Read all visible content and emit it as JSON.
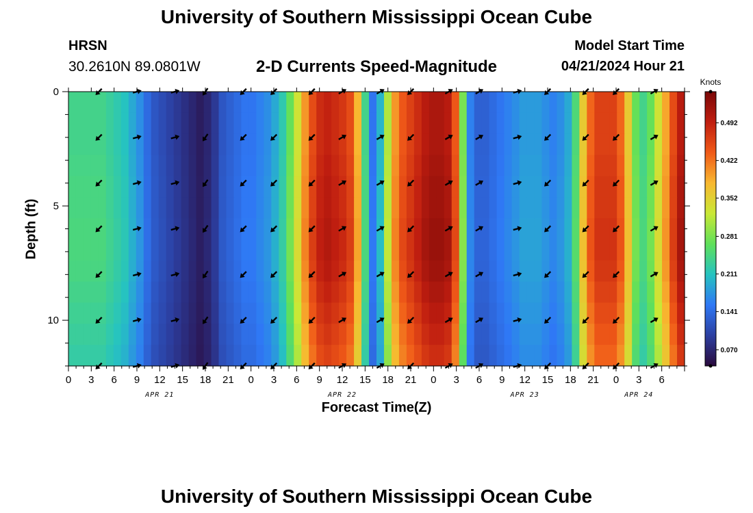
{
  "header": {
    "title": "University of Southern Mississippi Ocean Cube",
    "station": "HRSN",
    "coords": "30.2610N  89.0801W",
    "subtitle": "2-D Currents Speed-Magnitude",
    "model_start_label": "Model Start Time",
    "model_start_value": "04/21/2024 Hour 21",
    "footer_title": "University of Southern Mississippi Ocean Cube"
  },
  "colors": {
    "colormap": [
      "#2a0a3c",
      "#2c3fa0",
      "#2f78f5",
      "#26c3c0",
      "#5fe05a",
      "#c9e836",
      "#f8b830",
      "#f05a18",
      "#c01e10",
      "#7a0808"
    ]
  },
  "chart_data": {
    "type": "heatmap",
    "xlabel": "Forecast Time(Z)",
    "ylabel": "Depth (ft)",
    "x_range_hours": [
      0,
      81
    ],
    "y_range_ft": [
      0,
      12
    ],
    "x_tick_labels": [
      "0",
      "3",
      "6",
      "9",
      "12",
      "15",
      "18",
      "21",
      "0",
      "3",
      "6",
      "9",
      "12",
      "15",
      "18",
      "21",
      "0",
      "3",
      "6",
      "9",
      "12",
      "15",
      "18",
      "21",
      "0",
      "3",
      "6"
    ],
    "y_ticks": [
      0,
      5,
      10
    ],
    "y_tick_labels": [
      "0",
      "5",
      "10"
    ],
    "date_labels": [
      {
        "hour": 12,
        "label": "APR 21"
      },
      {
        "hour": 36,
        "label": "APR 22"
      },
      {
        "hour": 60,
        "label": "APR 23"
      },
      {
        "hour": 75,
        "label": "APR 24"
      }
    ],
    "colorbar": {
      "units": "Knots",
      "min": 0.04,
      "max": 0.55,
      "ticks": [
        0.07,
        0.141,
        0.211,
        0.281,
        0.352,
        0.422,
        0.492
      ],
      "tick_labels": [
        "0.070",
        "0.141",
        "0.211",
        "0.281",
        "0.352",
        "0.422",
        "0.492"
      ]
    },
    "surface_speed_knots": [
      0.24,
      0.24,
      0.24,
      0.24,
      0.24,
      0.23,
      0.22,
      0.21,
      0.19,
      0.17,
      0.14,
      0.12,
      0.11,
      0.1,
      0.09,
      0.08,
      0.07,
      0.06,
      0.07,
      0.09,
      0.12,
      0.13,
      0.14,
      0.15,
      0.15,
      0.16,
      0.17,
      0.19,
      0.22,
      0.27,
      0.33,
      0.4,
      0.45,
      0.48,
      0.49,
      0.48,
      0.47,
      0.45,
      0.38,
      0.24,
      0.15,
      0.2,
      0.31,
      0.4,
      0.44,
      0.46,
      0.48,
      0.5,
      0.51,
      0.51,
      0.5,
      0.44,
      0.28,
      0.16,
      0.13,
      0.13,
      0.14,
      0.15,
      0.16,
      0.17,
      0.18,
      0.18,
      0.18,
      0.17,
      0.16,
      0.17,
      0.19,
      0.25,
      0.36,
      0.43,
      0.46,
      0.46,
      0.46,
      0.43,
      0.36,
      0.27,
      0.24,
      0.27,
      0.33,
      0.39,
      0.45,
      0.5
    ],
    "speed_depth_factors": [
      1.0,
      1.0,
      1.0,
      1.01,
      1.02,
      1.02,
      1.03,
      1.03,
      1.02,
      1.0,
      0.98,
      0.96,
      0.94
    ],
    "arrow_hours": [
      4,
      9,
      14,
      18,
      23,
      27,
      32,
      36,
      41,
      45,
      50,
      54,
      59,
      63,
      68,
      72,
      77
    ],
    "arrow_depths_ft": [
      0,
      2,
      4,
      6,
      8,
      10,
      12
    ],
    "arrow_directions_deg": [
      225,
      15,
      15,
      235,
      225,
      225,
      225,
      30,
      30,
      225,
      30,
      30,
      15,
      225,
      225,
      225,
      30
    ]
  }
}
